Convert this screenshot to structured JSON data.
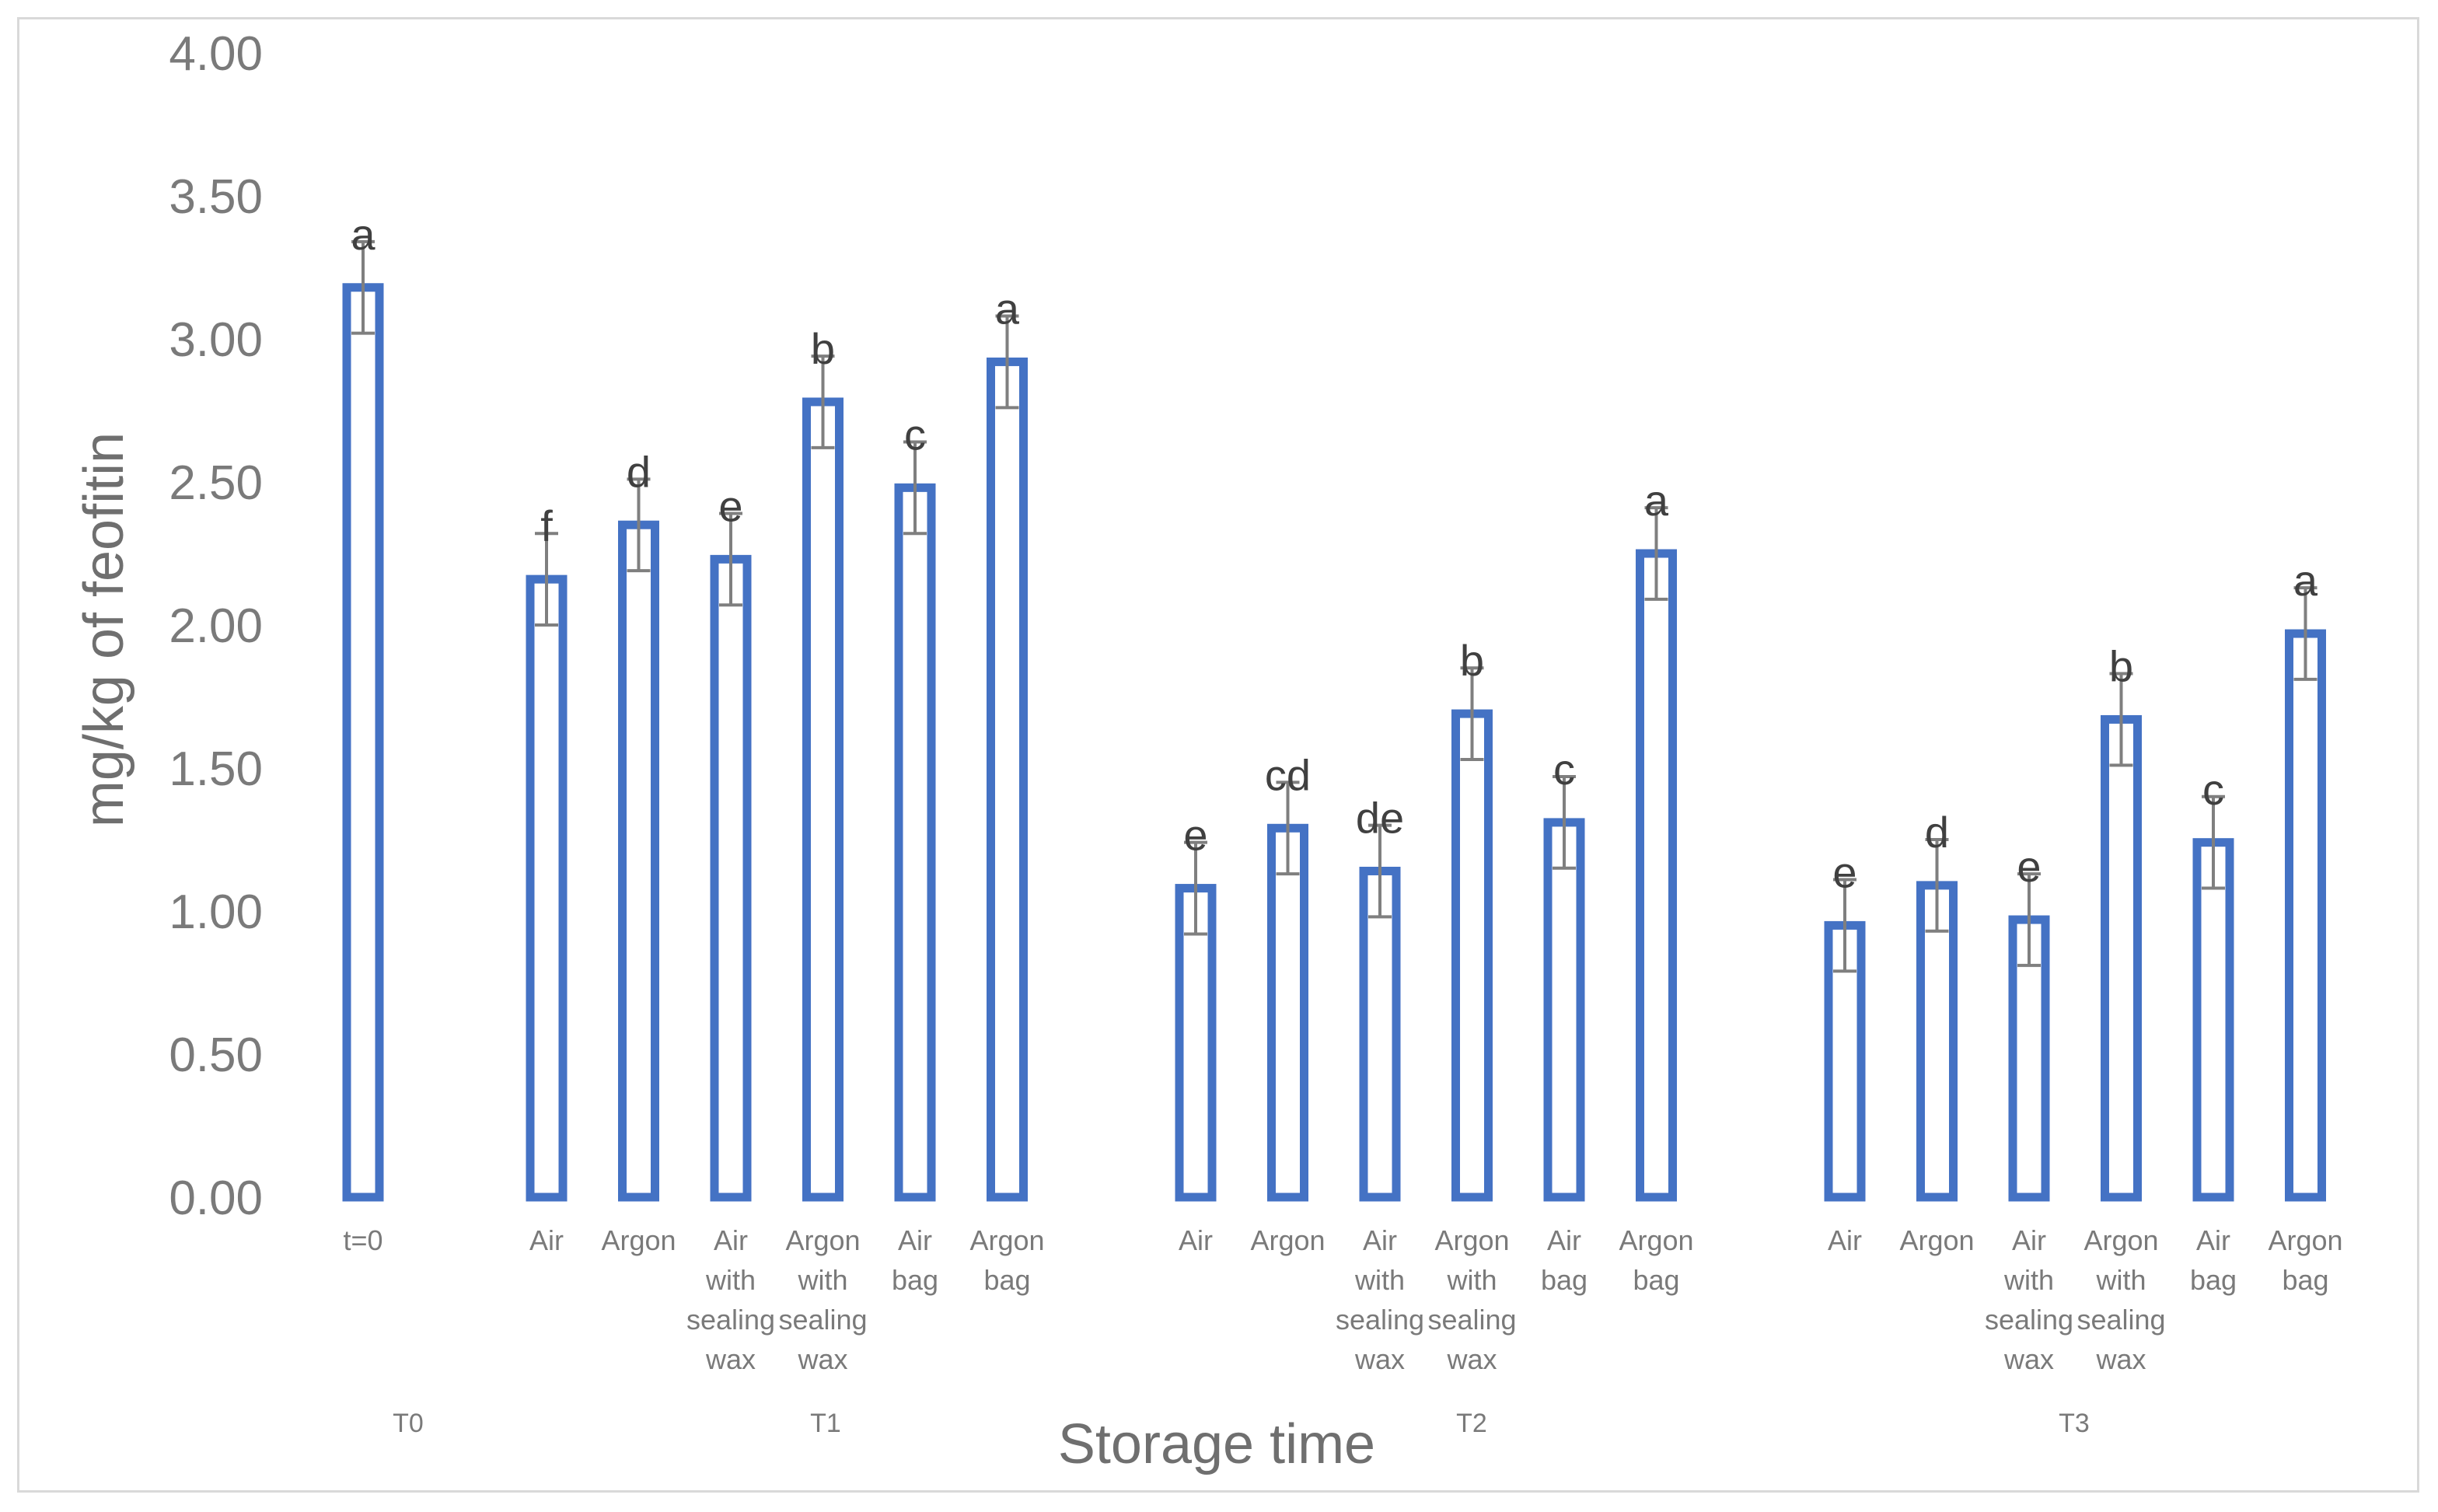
{
  "chart_data": {
    "type": "bar",
    "ylabel": "mg/kg of feofitin",
    "xlabel": "Storage time",
    "ylim": [
      0,
      4
    ],
    "yticks": [
      "0.00",
      "0.50",
      "1.00",
      "1.50",
      "2.00",
      "2.50",
      "3.00",
      "3.50",
      "4.00"
    ],
    "grid": false,
    "bar_color": "#4472c4",
    "error_color": "#7f7f7f",
    "groups": [
      {
        "name": "T0",
        "bars": [
          {
            "label": [
              "t=0"
            ],
            "value": 3.18,
            "error": 0.16,
            "letter": "a"
          }
        ]
      },
      {
        "name": "T1",
        "bars": [
          {
            "label": [
              "Air"
            ],
            "value": 2.16,
            "error": 0.16,
            "letter": "f"
          },
          {
            "label": [
              "Argon"
            ],
            "value": 2.35,
            "error": 0.16,
            "letter": "d"
          },
          {
            "label": [
              "Air",
              "with",
              "sealing",
              "wax"
            ],
            "value": 2.23,
            "error": 0.16,
            "letter": "e"
          },
          {
            "label": [
              "Argon",
              "with",
              "sealing",
              "wax"
            ],
            "value": 2.78,
            "error": 0.16,
            "letter": "b"
          },
          {
            "label": [
              "Air",
              "bag"
            ],
            "value": 2.48,
            "error": 0.16,
            "letter": "c"
          },
          {
            "label": [
              "Argon",
              "bag"
            ],
            "value": 2.92,
            "error": 0.16,
            "letter": "a"
          }
        ]
      },
      {
        "name": "T2",
        "bars": [
          {
            "label": [
              "Air"
            ],
            "value": 1.08,
            "error": 0.16,
            "letter": "e"
          },
          {
            "label": [
              "Argon"
            ],
            "value": 1.29,
            "error": 0.16,
            "letter": "cd"
          },
          {
            "label": [
              "Air",
              "with",
              "sealing",
              "wax"
            ],
            "value": 1.14,
            "error": 0.16,
            "letter": "de"
          },
          {
            "label": [
              "Argon",
              "with",
              "sealing",
              "wax"
            ],
            "value": 1.69,
            "error": 0.16,
            "letter": "b"
          },
          {
            "label": [
              "Air",
              "bag"
            ],
            "value": 1.31,
            "error": 0.16,
            "letter": "c"
          },
          {
            "label": [
              "Argon",
              "bag"
            ],
            "value": 2.25,
            "error": 0.16,
            "letter": "a"
          }
        ]
      },
      {
        "name": "T3",
        "bars": [
          {
            "label": [
              "Air"
            ],
            "value": 0.95,
            "error": 0.16,
            "letter": "e"
          },
          {
            "label": [
              "Argon"
            ],
            "value": 1.09,
            "error": 0.16,
            "letter": "d"
          },
          {
            "label": [
              "Air",
              "with",
              "sealing",
              "wax"
            ],
            "value": 0.97,
            "error": 0.16,
            "letter": "e"
          },
          {
            "label": [
              "Argon",
              "with",
              "sealing",
              "wax"
            ],
            "value": 1.67,
            "error": 0.16,
            "letter": "b"
          },
          {
            "label": [
              "Air",
              "bag"
            ],
            "value": 1.24,
            "error": 0.16,
            "letter": "c"
          },
          {
            "label": [
              "Argon",
              "bag"
            ],
            "value": 1.97,
            "error": 0.16,
            "letter": "a"
          }
        ]
      }
    ]
  }
}
